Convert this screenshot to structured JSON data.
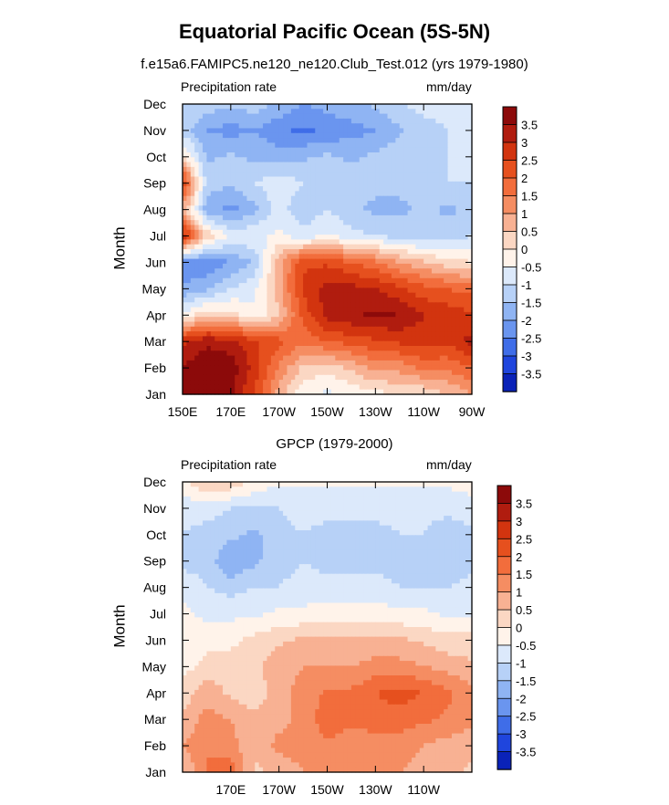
{
  "title": "Equatorial Pacific Ocean (5S-5N)",
  "chart_data": [
    {
      "type": "heatmap",
      "subtitle": "f.e15a6.FAMIPC5.ne120_ne120.Club_Test.012 (yrs 1979-1980)",
      "left_label": "Precipitation rate",
      "right_label": "mm/day",
      "ylabel": "Month",
      "xlabel": "",
      "x_tick_labels": [
        "150E",
        "170E",
        "170W",
        "150W",
        "130W",
        "110W",
        "90W"
      ],
      "y_tick_labels": [
        "Jan",
        "Feb",
        "Mar",
        "Apr",
        "May",
        "Jun",
        "Jul",
        "Aug",
        "Sep",
        "Oct",
        "Nov",
        "Dec"
      ],
      "xlim": [
        150,
        270
      ],
      "colorbar_levels": [
        "3.5",
        "3",
        "2.5",
        "2",
        "1.5",
        "1",
        "0.5",
        "0",
        "-0.5",
        "-1",
        "-1.5",
        "-2",
        "-2.5",
        "-3",
        "-3.5"
      ],
      "colorbar_colors": [
        "#8c0a0a",
        "#b01c0f",
        "#d2340f",
        "#e6501e",
        "#f26d3c",
        "#f58d62",
        "#f8b193",
        "#fbd7c3",
        "#fff3ea",
        "#dce9fb",
        "#b7d1f7",
        "#8fb4f3",
        "#6a95ef",
        "#3f6de8",
        "#1f45dd",
        "#0a22b8"
      ],
      "x_grid_lon": [
        150,
        170,
        190,
        210,
        230,
        250,
        270
      ],
      "y_grid_month": [
        1,
        2,
        3,
        4,
        5,
        6,
        7,
        8,
        9,
        10,
        11,
        12
      ],
      "values": [
        [
          3.8,
          4.0,
          3.6,
          2.4,
          0.8,
          -0.4,
          -0.6,
          -0.4,
          -0.2,
          0.0,
          0.1,
          0.5,
          1.0
        ],
        [
          3.6,
          3.9,
          3.8,
          2.8,
          1.4,
          0.4,
          0.2,
          0.6,
          1.2,
          1.2,
          1.6,
          1.6,
          2.0
        ],
        [
          2.8,
          3.4,
          3.2,
          2.6,
          2.2,
          1.6,
          2.0,
          2.2,
          2.4,
          2.6,
          2.8,
          2.6,
          3.2
        ],
        [
          -0.4,
          0.4,
          0.2,
          -0.4,
          0.4,
          2.2,
          3.2,
          3.4,
          3.6,
          3.5,
          3.0,
          2.8,
          2.6
        ],
        [
          -2.0,
          -1.6,
          -1.0,
          -0.6,
          0.8,
          2.6,
          3.2,
          3.2,
          3.0,
          2.6,
          2.2,
          2.0,
          1.8
        ],
        [
          -2.2,
          -2.4,
          -2.0,
          -1.4,
          0.8,
          2.4,
          2.4,
          2.0,
          1.6,
          1.0,
          0.6,
          0.2,
          0.0
        ],
        [
          3.0,
          0.4,
          -0.6,
          -0.6,
          -0.4,
          -0.8,
          -0.4,
          -0.8,
          -1.0,
          -1.2,
          -1.4,
          -1.2,
          -1.0
        ],
        [
          0.8,
          -1.8,
          -2.2,
          -1.6,
          -0.8,
          -1.4,
          -1.0,
          -1.4,
          -1.6,
          -1.6,
          -1.4,
          -1.6,
          -1.4
        ],
        [
          2.6,
          -1.2,
          -1.4,
          -1.0,
          -0.6,
          -1.0,
          -1.2,
          -1.2,
          -1.4,
          -1.4,
          -1.2,
          -1.0,
          -1.0
        ],
        [
          0.2,
          -1.6,
          -1.4,
          -1.6,
          -1.8,
          -1.6,
          -1.4,
          -1.6,
          -1.4,
          -1.2,
          -1.2,
          -1.0,
          -1.0
        ],
        [
          -1.2,
          -2.0,
          -2.2,
          -2.0,
          -2.4,
          -2.6,
          -2.4,
          -2.2,
          -2.0,
          -1.6,
          -1.2,
          -1.0,
          -1.0
        ],
        [
          -1.0,
          -1.2,
          -1.4,
          -1.2,
          -1.6,
          -2.0,
          -1.8,
          -1.6,
          -1.4,
          -1.0,
          -0.8,
          -0.8,
          -1.0
        ]
      ]
    },
    {
      "type": "heatmap",
      "subtitle": "GPCP (1979-2000)",
      "left_label": "Precipitation rate",
      "right_label": "mm/day",
      "ylabel": "Month",
      "xlabel": "",
      "x_tick_labels": [
        "170E",
        "170W",
        "150W",
        "130W",
        "110W"
      ],
      "y_tick_labels": [
        "Jan",
        "Feb",
        "Mar",
        "Apr",
        "May",
        "Jun",
        "Jul",
        "Aug",
        "Sep",
        "Oct",
        "Nov",
        "Dec"
      ],
      "xlim": [
        150,
        270
      ],
      "colorbar_levels": [
        "3.5",
        "3",
        "2.5",
        "2",
        "1.5",
        "1",
        "0.5",
        "0",
        "-0.5",
        "-1",
        "-1.5",
        "-2",
        "-2.5",
        "-3",
        "-3.5"
      ],
      "colorbar_colors": [
        "#8c0a0a",
        "#b01c0f",
        "#d2340f",
        "#e6501e",
        "#f26d3c",
        "#f58d62",
        "#f8b193",
        "#fbd7c3",
        "#fff3ea",
        "#dce9fb",
        "#b7d1f7",
        "#8fb4f3",
        "#6a95ef",
        "#3f6de8",
        "#1f45dd",
        "#0a22b8"
      ],
      "x_grid_lon": [
        150,
        170,
        190,
        210,
        230,
        250,
        270
      ],
      "y_grid_month": [
        1,
        2,
        3,
        4,
        5,
        6,
        7,
        8,
        9,
        10,
        11,
        12
      ],
      "values": [
        [
          0.4,
          1.6,
          1.8,
          0.4,
          0.6,
          1.0,
          1.2,
          1.0,
          1.0,
          1.0,
          0.8,
          0.6,
          0.4
        ],
        [
          1.0,
          1.4,
          1.2,
          0.6,
          1.2,
          1.2,
          1.4,
          1.2,
          1.2,
          1.2,
          1.0,
          0.8,
          0.6
        ],
        [
          0.6,
          1.2,
          1.0,
          0.6,
          0.8,
          1.2,
          1.8,
          1.6,
          1.8,
          1.8,
          1.6,
          1.4,
          1.2
        ],
        [
          0.2,
          0.8,
          0.4,
          0.2,
          0.8,
          1.2,
          1.6,
          1.6,
          2.0,
          2.2,
          2.0,
          1.6,
          1.2
        ],
        [
          -0.2,
          0.2,
          0.4,
          0.4,
          0.8,
          1.0,
          1.0,
          1.0,
          1.2,
          1.2,
          1.0,
          0.8,
          0.6
        ],
        [
          -0.4,
          -0.2,
          -0.2,
          0.2,
          0.4,
          0.6,
          0.6,
          0.6,
          0.6,
          0.6,
          0.4,
          0.2,
          0.2
        ],
        [
          -0.4,
          -0.6,
          -0.6,
          -0.6,
          -0.4,
          -0.4,
          -0.2,
          -0.2,
          -0.2,
          -0.4,
          -0.4,
          -0.6,
          -0.6
        ],
        [
          -0.6,
          -1.0,
          -1.2,
          -1.0,
          -1.0,
          -0.8,
          -0.8,
          -0.8,
          -0.8,
          -1.0,
          -1.0,
          -1.0,
          -0.8
        ],
        [
          -1.2,
          -1.2,
          -2.0,
          -1.6,
          -1.2,
          -1.0,
          -1.2,
          -1.2,
          -1.2,
          -1.2,
          -1.0,
          -1.4,
          -1.2
        ],
        [
          -1.0,
          -1.2,
          -1.4,
          -1.6,
          -1.2,
          -1.0,
          -1.2,
          -1.2,
          -1.2,
          -1.0,
          -1.0,
          -1.4,
          -1.2
        ],
        [
          -0.8,
          -0.8,
          -1.0,
          -1.0,
          -1.0,
          -0.8,
          -0.8,
          -0.8,
          -0.8,
          -0.8,
          -0.8,
          -0.8,
          -0.6
        ],
        [
          -0.2,
          0.6,
          0.4,
          -0.2,
          -0.4,
          -0.4,
          -0.4,
          -0.4,
          -0.4,
          -0.4,
          -0.4,
          -0.4,
          -0.4
        ]
      ]
    }
  ]
}
